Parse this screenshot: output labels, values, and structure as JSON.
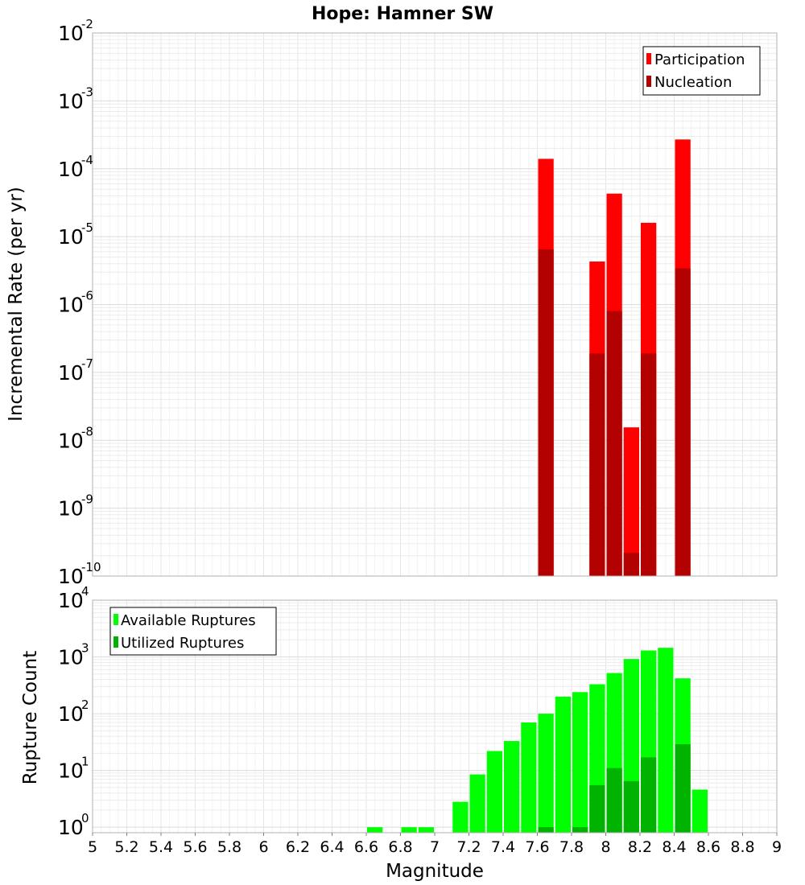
{
  "chart_data": [
    {
      "type": "bar",
      "title": "Hope: Hamner SW",
      "xlabel": "",
      "ylabel": "Incremental Rate (per yr)",
      "xlim": [
        5,
        9
      ],
      "ylim": [
        1e-10,
        0.01
      ],
      "yscale": "log",
      "ytick_exponents": [
        "-10",
        "-9",
        "-8",
        "-7",
        "-6",
        "-5",
        "-4",
        "-3",
        "-2"
      ],
      "grid": true,
      "legend": "top-right",
      "legend_entries": [
        "Participation",
        "Nucleation"
      ],
      "series": [
        {
          "name": "Participation",
          "color": "#ff0000",
          "x": [
            7.65,
            7.95,
            8.05,
            8.15,
            8.25,
            8.45
          ],
          "values": [
            0.00014,
            4.3e-06,
            4.3e-05,
            1.55e-08,
            1.6e-05,
            0.00027
          ]
        },
        {
          "name": "Nucleation",
          "color": "#b30000",
          "x": [
            7.65,
            7.95,
            8.05,
            8.15,
            8.25,
            8.45
          ],
          "values": [
            6.5e-06,
            1.9e-07,
            8e-07,
            2.2e-10,
            1.9e-07,
            3.4e-06
          ]
        }
      ]
    },
    {
      "type": "bar",
      "title": "",
      "xlabel": "Magnitude",
      "ylabel": "Rupture Count",
      "xlim": [
        5,
        9
      ],
      "xticks": [
        "5",
        "5.2",
        "5.4",
        "5.6",
        "5.8",
        "6",
        "6.2",
        "6.4",
        "6.6",
        "6.8",
        "7",
        "7.2",
        "7.4",
        "7.6",
        "7.8",
        "8",
        "8.2",
        "8.4",
        "8.6",
        "8.8",
        "9"
      ],
      "ylim": [
        0.8,
        10000.0
      ],
      "yscale": "log",
      "ytick_exponents": [
        "0",
        "1",
        "2",
        "3",
        "4"
      ],
      "grid": true,
      "legend": "top-left",
      "legend_entries": [
        "Available Ruptures",
        "Utilized Ruptures"
      ],
      "series": [
        {
          "name": "Available Ruptures",
          "color": "#00ff00",
          "x": [
            6.65,
            6.85,
            6.95,
            7.15,
            7.25,
            7.35,
            7.45,
            7.55,
            7.65,
            7.75,
            7.85,
            7.95,
            8.05,
            8.15,
            8.25,
            8.35,
            8.45,
            8.55
          ],
          "values": [
            1,
            1,
            1,
            2.8,
            8.5,
            22,
            33,
            70,
            100,
            200,
            240,
            330,
            520,
            920,
            1300,
            1450,
            420,
            4.6
          ]
        },
        {
          "name": "Utilized Ruptures",
          "color": "#00b300",
          "x": [
            7.65,
            7.85,
            7.95,
            8.05,
            8.15,
            8.25,
            8.45
          ],
          "values": [
            1,
            1,
            5.5,
            11,
            6.5,
            17,
            29
          ]
        }
      ]
    }
  ]
}
